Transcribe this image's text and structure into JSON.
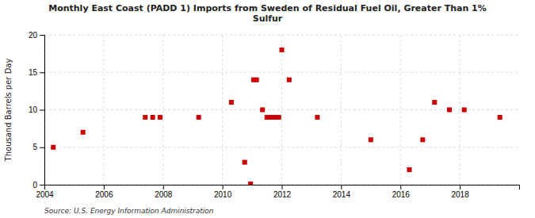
{
  "chart_data": {
    "type": "scatter",
    "title": "Monthly East Coast (PADD 1) Imports from Sweden of Residual Fuel Oil, Greater Than 1%\nSulfur",
    "ylabel": "Thousand Barrels per Day",
    "source": "Source: U.S. Energy Information Administration",
    "color": "#cc0000",
    "marker": "square",
    "grid": true,
    "xlim": [
      2004,
      2020
    ],
    "ylim": [
      0,
      20
    ],
    "xticks": [
      2004,
      2006,
      2008,
      2010,
      2012,
      2014,
      2016,
      2018
    ],
    "yticks": [
      0,
      5,
      10,
      15,
      20
    ],
    "x": [
      2004.3,
      2005.3,
      2007.4,
      2007.65,
      2007.9,
      2009.2,
      2010.3,
      2010.75,
      2010.95,
      2011.05,
      2011.15,
      2011.35,
      2011.5,
      2011.6,
      2011.7,
      2011.8,
      2011.9,
      2012.0,
      2012.25,
      2013.2,
      2015.0,
      2016.3,
      2016.75,
      2017.15,
      2017.65,
      2018.15,
      2019.35
    ],
    "values": [
      5.0,
      7.0,
      9.0,
      9.0,
      9.0,
      9.0,
      11.0,
      3.0,
      0.1,
      14.0,
      14.0,
      10.0,
      9.0,
      9.0,
      9.0,
      9.0,
      9.0,
      18.0,
      14.0,
      9.0,
      6.0,
      2.0,
      6.0,
      11.0,
      10.0,
      10.0,
      9.0
    ]
  }
}
